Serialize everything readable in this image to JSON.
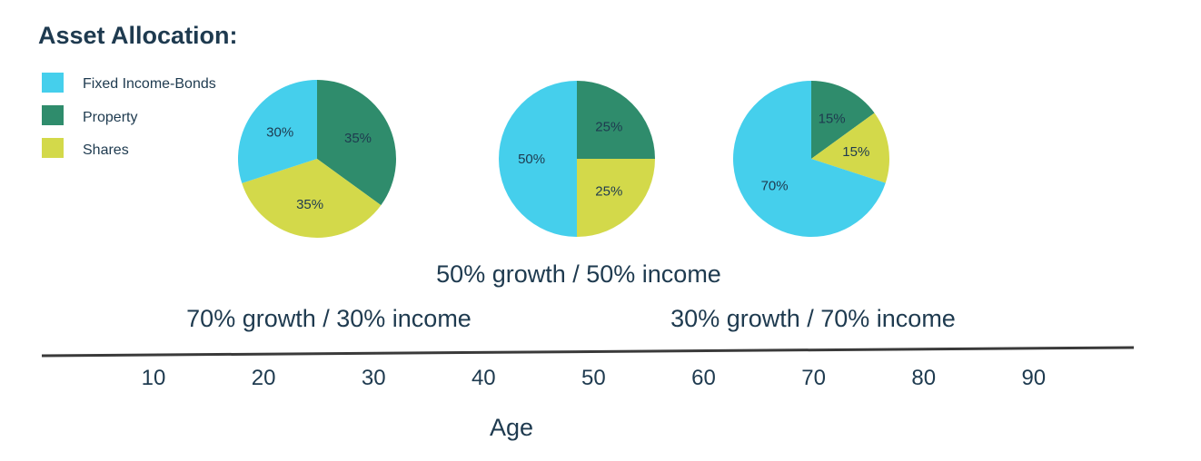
{
  "colors": {
    "Fixed Income-Bonds": "#45cfec",
    "Property": "#2f8c6c",
    "Shares": "#d3d94a",
    "text": "#1e3a4f",
    "axis": "#3a3a3a"
  },
  "chart_data": {
    "type": "pie",
    "title": "Asset Allocation:",
    "legend": {
      "placement": "top-left",
      "entries": [
        "Fixed Income-Bonds",
        "Property",
        "Shares"
      ]
    },
    "pies": [
      {
        "slices": [
          {
            "name": "Property",
            "value": 35,
            "label": "35%"
          },
          {
            "name": "Shares",
            "value": 35,
            "label": "35%"
          },
          {
            "name": "Fixed Income-Bonds",
            "value": 30,
            "label": "30%"
          }
        ]
      },
      {
        "slices": [
          {
            "name": "Property",
            "value": 25,
            "label": "25%"
          },
          {
            "name": "Shares",
            "value": 25,
            "label": "25%"
          },
          {
            "name": "Fixed Income-Bonds",
            "value": 50,
            "label": "50%"
          }
        ]
      },
      {
        "slices": [
          {
            "name": "Property",
            "value": 15,
            "label": "15%"
          },
          {
            "name": "Shares",
            "value": 15,
            "label": "15%"
          },
          {
            "name": "Fixed Income-Bonds",
            "value": 70,
            "label": "70%"
          }
        ]
      }
    ],
    "mix_labels": [
      "70% growth / 30% income",
      "50% growth / 50% income",
      "30% growth / 70% income"
    ],
    "xlabel": "Age",
    "xticks": [
      10,
      20,
      30,
      40,
      50,
      60,
      70,
      80,
      90
    ]
  }
}
